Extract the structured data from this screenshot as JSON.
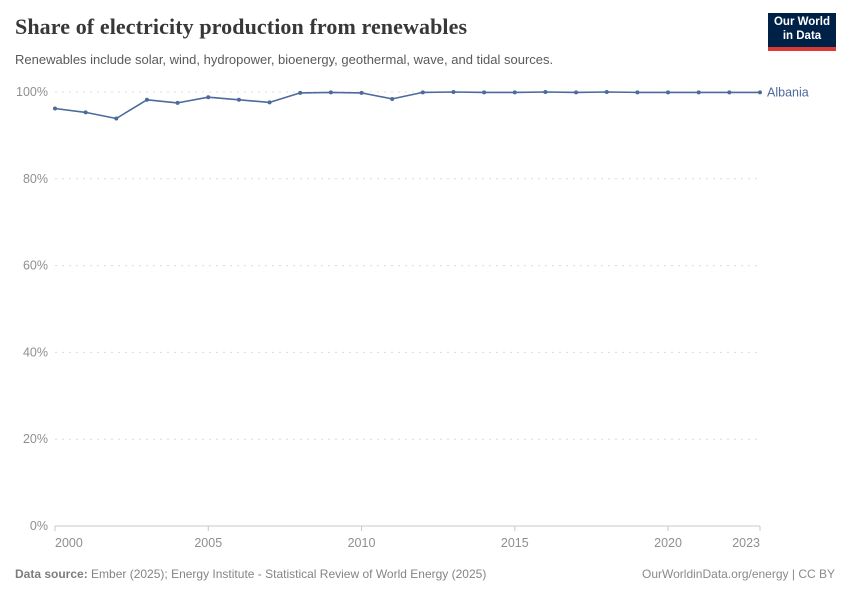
{
  "header": {
    "title": "Share of electricity production from renewables",
    "subtitle": "Renewables include solar, wind, hydropower, bioenergy, geothermal, wave, and tidal sources.",
    "logo": {
      "line1": "Our World",
      "line2": "in Data"
    }
  },
  "chart_data": {
    "type": "line",
    "title": "Share of electricity production from renewables",
    "x": [
      2000,
      2001,
      2002,
      2003,
      2004,
      2005,
      2006,
      2007,
      2008,
      2009,
      2010,
      2011,
      2012,
      2013,
      2014,
      2015,
      2016,
      2017,
      2018,
      2019,
      2020,
      2021,
      2022,
      2023
    ],
    "series": [
      {
        "name": "Albania",
        "values": [
          96.2,
          95.3,
          93.9,
          98.2,
          97.5,
          98.8,
          98.2,
          97.6,
          99.8,
          99.9,
          99.8,
          98.4,
          99.9,
          100,
          99.9,
          99.9,
          100,
          99.9,
          100,
          99.9,
          99.9,
          99.9,
          99.9,
          99.9
        ]
      }
    ],
    "xlim": [
      2000,
      2023
    ],
    "ylim": [
      0,
      100
    ],
    "x_ticks": [
      2000,
      2005,
      2010,
      2015,
      2020,
      2023
    ],
    "y_ticks": [
      0,
      20,
      40,
      60,
      80,
      100
    ],
    "y_tick_suffix": "%",
    "grid": "horizontal-dashed",
    "legend_position": "end-of-line",
    "entity_label": "Albania"
  },
  "footer": {
    "source_label": "Data source:",
    "source_text": " Ember (2025); Energy Institute - Statistical Review of World Energy (2025)",
    "right_text": "OurWorldinData.org/energy | CC BY"
  },
  "colors": {
    "line": "#4c6a9c",
    "grid": "#dcdcdc",
    "axis": "#c8c8c8",
    "tick_text": "#8f8f8f",
    "entity_text": "#4c6a9c",
    "logo_bg": "#002147",
    "logo_red": "#d93a34"
  }
}
